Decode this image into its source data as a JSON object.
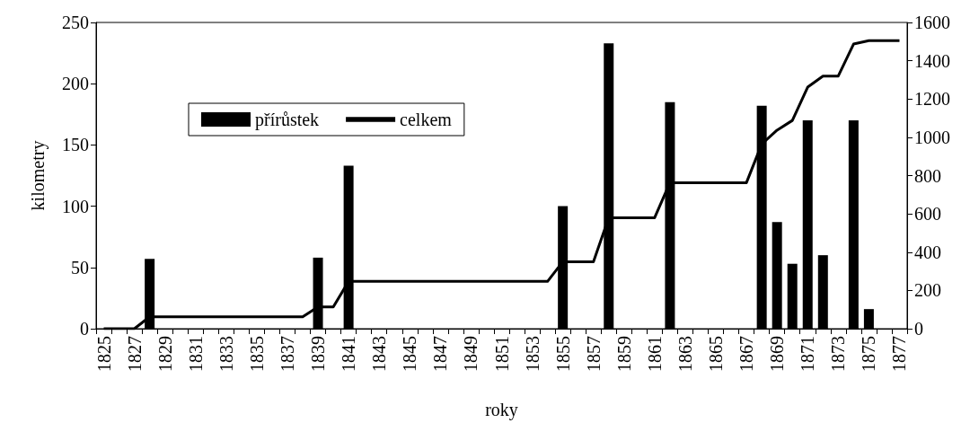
{
  "chart_data": {
    "type": "bar",
    "xlabel": "roky",
    "ylabel": "kilometry",
    "categories": [
      "1825",
      null,
      "1827",
      null,
      "1829",
      null,
      "1831",
      null,
      "1833",
      null,
      "1835",
      null,
      "1837",
      null,
      "1839",
      null,
      "1841",
      null,
      "1843",
      null,
      "1845",
      null,
      "1847",
      null,
      "1849",
      null,
      "1851",
      null,
      "1853",
      null,
      "1855",
      null,
      "1857",
      null,
      "1859",
      null,
      "1861",
      null,
      "1863",
      null,
      "1865",
      null,
      "1867",
      null,
      "1869",
      null,
      "1871",
      null,
      "1873",
      null,
      "1875",
      null,
      "1877"
    ],
    "series": [
      {
        "name": "přírůstek",
        "color": "#000000",
        "values": [
          null,
          null,
          null,
          57,
          null,
          null,
          null,
          null,
          null,
          null,
          null,
          null,
          null,
          null,
          58,
          null,
          133,
          null,
          null,
          null,
          null,
          null,
          null,
          null,
          null,
          null,
          null,
          null,
          null,
          null,
          100,
          null,
          null,
          233,
          null,
          null,
          null,
          185,
          null,
          null,
          null,
          null,
          null,
          182,
          87,
          53,
          170,
          60,
          null,
          170,
          16,
          null,
          null
        ]
      },
      {
        "name": "celkem",
        "type": "line",
        "axis": "y2",
        "color": "#000000",
        "values": [
          0,
          0,
          0,
          62,
          62,
          62,
          62,
          62,
          62,
          62,
          62,
          62,
          62,
          62,
          114,
          114,
          247,
          247,
          247,
          247,
          247,
          247,
          247,
          247,
          247,
          247,
          247,
          247,
          247,
          247,
          350,
          350,
          350,
          580,
          580,
          580,
          580,
          763,
          763,
          763,
          763,
          763,
          763,
          965,
          1037,
          1088,
          1262,
          1320,
          1320,
          1487,
          1505,
          1505,
          1505
        ]
      }
    ],
    "ylim": [
      0,
      250
    ],
    "yticks": [
      0,
      50,
      100,
      150,
      200,
      250
    ],
    "y2lim": [
      0,
      1600
    ],
    "y2ticks": [
      0,
      200,
      400,
      600,
      800,
      1000,
      1200,
      1400,
      1600
    ],
    "grid": false,
    "legend": "top left",
    "marker": "none",
    "line_style": "solid"
  }
}
